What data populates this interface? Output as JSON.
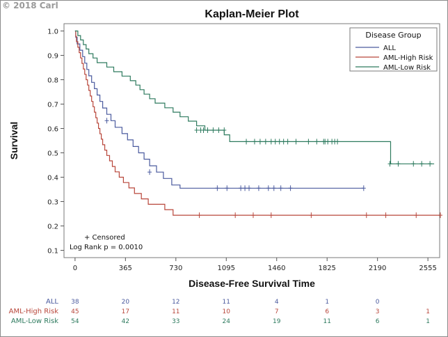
{
  "watermark": "© 2018 Carl",
  "chart_data": {
    "type": "line",
    "title": "Kaplan-Meier Plot",
    "xlabel": "Disease-Free Survival Time",
    "ylabel": "Survival",
    "xlim": [
      -80,
      2640
    ],
    "ylim": [
      0.07,
      1.03
    ],
    "xticks": [
      0,
      365,
      730,
      1095,
      1460,
      1825,
      2190,
      2555
    ],
    "yticks": [
      0.1,
      0.2,
      0.3,
      0.4,
      0.5,
      0.6,
      0.7,
      0.8,
      0.9,
      1.0
    ],
    "grid": false,
    "legend": {
      "title": "Disease Group",
      "placement": "top-right"
    },
    "annotation": [
      "+ Censored",
      "Log Rank p = 0.0010"
    ],
    "series": [
      {
        "name": "ALL",
        "color": "#4a5a9e",
        "steps": [
          [
            0,
            1.0
          ],
          [
            5,
            0.974
          ],
          [
            15,
            0.947
          ],
          [
            35,
            0.921
          ],
          [
            55,
            0.895
          ],
          [
            70,
            0.868
          ],
          [
            85,
            0.842
          ],
          [
            100,
            0.816
          ],
          [
            120,
            0.789
          ],
          [
            140,
            0.763
          ],
          [
            160,
            0.737
          ],
          [
            180,
            0.711
          ],
          [
            200,
            0.684
          ],
          [
            230,
            0.658
          ],
          [
            260,
            0.632
          ],
          [
            290,
            0.605
          ],
          [
            340,
            0.579
          ],
          [
            380,
            0.553
          ],
          [
            420,
            0.526
          ],
          [
            460,
            0.5
          ],
          [
            500,
            0.474
          ],
          [
            540,
            0.447
          ],
          [
            590,
            0.421
          ],
          [
            640,
            0.395
          ],
          [
            700,
            0.368
          ],
          [
            760,
            0.355
          ],
          [
            2090,
            0.355
          ]
        ],
        "censored": [
          [
            230,
            0.632
          ],
          [
            540,
            0.421
          ],
          [
            1030,
            0.355
          ],
          [
            1100,
            0.355
          ],
          [
            1200,
            0.355
          ],
          [
            1230,
            0.355
          ],
          [
            1260,
            0.355
          ],
          [
            1330,
            0.355
          ],
          [
            1400,
            0.355
          ],
          [
            1440,
            0.355
          ],
          [
            1490,
            0.355
          ],
          [
            1560,
            0.355
          ],
          [
            2090,
            0.355
          ]
        ]
      },
      {
        "name": "AML-High Risk",
        "color": "#b8463a",
        "steps": [
          [
            0,
            1.0
          ],
          [
            5,
            0.978
          ],
          [
            10,
            0.956
          ],
          [
            20,
            0.933
          ],
          [
            30,
            0.911
          ],
          [
            40,
            0.889
          ],
          [
            50,
            0.867
          ],
          [
            60,
            0.844
          ],
          [
            70,
            0.822
          ],
          [
            80,
            0.8
          ],
          [
            90,
            0.778
          ],
          [
            100,
            0.756
          ],
          [
            110,
            0.733
          ],
          [
            120,
            0.711
          ],
          [
            130,
            0.689
          ],
          [
            140,
            0.667
          ],
          [
            150,
            0.644
          ],
          [
            160,
            0.622
          ],
          [
            170,
            0.6
          ],
          [
            180,
            0.578
          ],
          [
            190,
            0.556
          ],
          [
            200,
            0.533
          ],
          [
            215,
            0.511
          ],
          [
            230,
            0.489
          ],
          [
            250,
            0.467
          ],
          [
            270,
            0.444
          ],
          [
            290,
            0.422
          ],
          [
            320,
            0.4
          ],
          [
            350,
            0.378
          ],
          [
            390,
            0.356
          ],
          [
            430,
            0.333
          ],
          [
            480,
            0.311
          ],
          [
            530,
            0.289
          ],
          [
            650,
            0.267
          ],
          [
            710,
            0.244
          ],
          [
            2645,
            0.244
          ]
        ],
        "censored": [
          [
            900,
            0.244
          ],
          [
            1160,
            0.244
          ],
          [
            1290,
            0.244
          ],
          [
            1420,
            0.244
          ],
          [
            1710,
            0.244
          ],
          [
            2110,
            0.244
          ],
          [
            2250,
            0.244
          ],
          [
            2470,
            0.244
          ],
          [
            2645,
            0.244
          ]
        ]
      },
      {
        "name": "AML-Low Risk",
        "color": "#2d7a5e",
        "steps": [
          [
            0,
            1.0
          ],
          [
            20,
            0.981
          ],
          [
            40,
            0.963
          ],
          [
            60,
            0.944
          ],
          [
            80,
            0.926
          ],
          [
            100,
            0.907
          ],
          [
            130,
            0.889
          ],
          [
            160,
            0.87
          ],
          [
            230,
            0.852
          ],
          [
            280,
            0.833
          ],
          [
            340,
            0.815
          ],
          [
            400,
            0.796
          ],
          [
            440,
            0.778
          ],
          [
            470,
            0.759
          ],
          [
            500,
            0.741
          ],
          [
            540,
            0.722
          ],
          [
            580,
            0.704
          ],
          [
            650,
            0.685
          ],
          [
            710,
            0.667
          ],
          [
            760,
            0.648
          ],
          [
            820,
            0.63
          ],
          [
            880,
            0.611
          ],
          [
            940,
            0.593
          ],
          [
            1080,
            0.574
          ],
          [
            1120,
            0.546
          ],
          [
            2250,
            0.546
          ],
          [
            2285,
            0.455
          ],
          [
            2600,
            0.455
          ]
        ],
        "censored": [
          [
            880,
            0.593
          ],
          [
            910,
            0.593
          ],
          [
            930,
            0.593
          ],
          [
            960,
            0.593
          ],
          [
            1000,
            0.593
          ],
          [
            1040,
            0.593
          ],
          [
            1080,
            0.593
          ],
          [
            1240,
            0.546
          ],
          [
            1300,
            0.546
          ],
          [
            1340,
            0.546
          ],
          [
            1380,
            0.546
          ],
          [
            1420,
            0.546
          ],
          [
            1450,
            0.546
          ],
          [
            1480,
            0.546
          ],
          [
            1510,
            0.546
          ],
          [
            1540,
            0.546
          ],
          [
            1600,
            0.546
          ],
          [
            1690,
            0.546
          ],
          [
            1750,
            0.546
          ],
          [
            1800,
            0.546
          ],
          [
            1810,
            0.546
          ],
          [
            1830,
            0.546
          ],
          [
            1860,
            0.546
          ],
          [
            1880,
            0.546
          ],
          [
            1900,
            0.546
          ],
          [
            2280,
            0.455
          ],
          [
            2340,
            0.455
          ],
          [
            2450,
            0.455
          ],
          [
            2510,
            0.455
          ],
          [
            2570,
            0.455
          ]
        ]
      }
    ],
    "at_risk": {
      "times": [
        0,
        365,
        730,
        1095,
        1460,
        1825,
        2190,
        2555
      ],
      "rows": [
        {
          "name": "ALL",
          "color": "#4a5a9e",
          "counts": [
            "38",
            "20",
            "12",
            "11",
            "4",
            "1",
            "0",
            ""
          ]
        },
        {
          "name": "AML-High Risk",
          "color": "#b8463a",
          "counts": [
            "45",
            "17",
            "11",
            "10",
            "7",
            "6",
            "3",
            "1"
          ]
        },
        {
          "name": "AML-Low Risk",
          "color": "#2d7a5e",
          "counts": [
            "54",
            "42",
            "33",
            "24",
            "19",
            "11",
            "6",
            "1"
          ]
        }
      ]
    }
  }
}
